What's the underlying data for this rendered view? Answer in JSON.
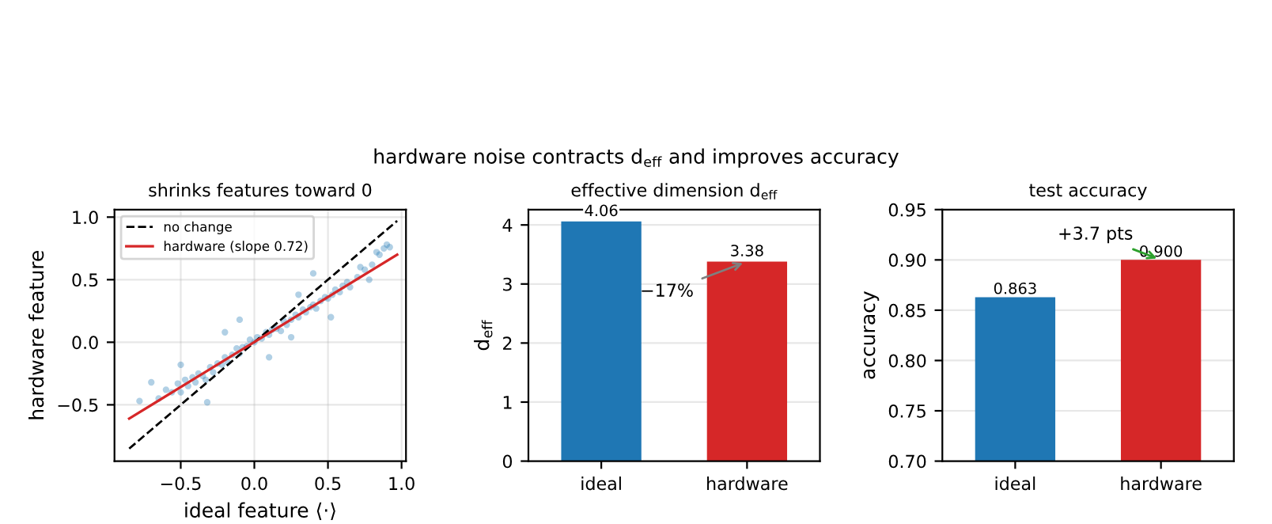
{
  "chart_data": [
    {
      "type": "scatter",
      "title": "shrinks features toward 0",
      "xlabel": "ideal feature ⟨·⟩",
      "ylabel": "hardware feature",
      "xlim": [
        -0.95,
        1.03
      ],
      "ylim": [
        -0.95,
        1.06
      ],
      "xticks": [
        {
          "value": -0.5,
          "label": "−0.5"
        },
        {
          "value": 0,
          "label": "0.0"
        },
        {
          "value": 0.5,
          "label": "0.5"
        },
        {
          "value": 1.0,
          "label": "1.0"
        }
      ],
      "yticks": [
        {
          "value": -0.5,
          "label": "−0.5"
        },
        {
          "value": 0,
          "label": "0.0"
        },
        {
          "value": 0.5,
          "label": "0.5"
        },
        {
          "value": 1.0,
          "label": "1.0"
        }
      ],
      "grid": true,
      "legend": "top left",
      "series": [
        {
          "type": "scatter",
          "color": "#1f77b4",
          "x": [
            -0.78,
            -0.7,
            -0.65,
            -0.6,
            -0.56,
            -0.52,
            -0.5,
            -0.47,
            -0.45,
            -0.42,
            -0.4,
            -0.38,
            -0.35,
            -0.33,
            -0.3,
            -0.28,
            -0.25,
            -0.22,
            -0.2,
            -0.18,
            -0.15,
            -0.12,
            -0.1,
            -0.08,
            -0.05,
            -0.03,
            0.0,
            0.02,
            0.05,
            0.08,
            0.1,
            0.12,
            0.15,
            0.18,
            0.2,
            0.22,
            0.25,
            0.28,
            0.3,
            0.33,
            0.35,
            0.38,
            0.4,
            0.42,
            0.45,
            0.48,
            0.5,
            0.53,
            0.55,
            0.58,
            0.6,
            0.63,
            0.65,
            0.7,
            0.72,
            0.75,
            0.8,
            0.83,
            0.85,
            0.88,
            0.9,
            0.92,
            -0.32,
            -0.1,
            0.25,
            0.1,
            -0.2,
            0.4,
            0.52,
            0.3,
            -0.5,
            0.78
          ],
          "values": [
            -0.47,
            -0.32,
            -0.45,
            -0.38,
            -0.4,
            -0.33,
            -0.4,
            -0.3,
            -0.35,
            -0.28,
            -0.32,
            -0.25,
            -0.27,
            -0.3,
            -0.2,
            -0.24,
            -0.17,
            -0.18,
            -0.12,
            -0.16,
            -0.1,
            -0.05,
            -0.09,
            -0.04,
            -0.03,
            0.02,
            0.0,
            0.04,
            0.03,
            0.08,
            0.06,
            0.1,
            0.11,
            0.09,
            0.17,
            0.14,
            0.18,
            0.22,
            0.2,
            0.26,
            0.24,
            0.28,
            0.3,
            0.27,
            0.33,
            0.36,
            0.35,
            0.38,
            0.42,
            0.4,
            0.45,
            0.48,
            0.44,
            0.52,
            0.6,
            0.58,
            0.62,
            0.72,
            0.7,
            0.75,
            0.78,
            0.76,
            -0.48,
            0.18,
            0.04,
            -0.12,
            0.08,
            0.55,
            0.2,
            0.38,
            -0.18,
            0.5
          ]
        },
        {
          "type": "line",
          "name": "no change",
          "color": "#000000",
          "line_style": "dashed",
          "x": [
            -0.85,
            0.97
          ],
          "values": [
            -0.85,
            0.97
          ]
        },
        {
          "type": "line",
          "name": "hardware (slope 0.72)",
          "color": "#d62728",
          "line_style": "solid",
          "x": [
            -0.85,
            0.97
          ],
          "values": [
            -0.61,
            0.7
          ]
        }
      ]
    },
    {
      "type": "bar",
      "title": "effective dimension d$_{eff}$",
      "ylabel": "d$_{eff}$",
      "categories": [
        "ideal",
        "hardware"
      ],
      "values": [
        4.06,
        3.38
      ],
      "colors": [
        "#1f77b4",
        "#d62728"
      ],
      "ylim": [
        0,
        4.26
      ],
      "yticks": [
        0,
        1,
        2,
        3,
        4
      ],
      "grid": "y",
      "data_labels": true,
      "annotations": [
        {
          "text": "−17%",
          "x": "hardware",
          "y": 3.38
        }
      ]
    },
    {
      "type": "bar",
      "title": "test accuracy",
      "ylabel": "accuracy",
      "categories": [
        "ideal",
        "hardware"
      ],
      "values": [
        0.863,
        0.9
      ],
      "value_labels": [
        "0.863",
        "0.900"
      ],
      "colors": [
        "#1f77b4",
        "#d62728"
      ],
      "ylim": [
        0.7,
        0.95
      ],
      "yticks": [
        {
          "value": 0.7,
          "label": "0.70"
        },
        {
          "value": 0.75,
          "label": "0.75"
        },
        {
          "value": 0.8,
          "label": "0.80"
        },
        {
          "value": 0.85,
          "label": "0.85"
        },
        {
          "value": 0.9,
          "label": "0.90"
        },
        {
          "value": 0.95,
          "label": "0.95"
        }
      ],
      "grid": "y",
      "annotations": [
        {
          "text": "+3.7 pts",
          "x": "hardware",
          "y": 0.9
        }
      ]
    },
    {
      "type": "other",
      "title": "hardware noise contracts d$_{eff}$ and improves accuracy"
    }
  ]
}
